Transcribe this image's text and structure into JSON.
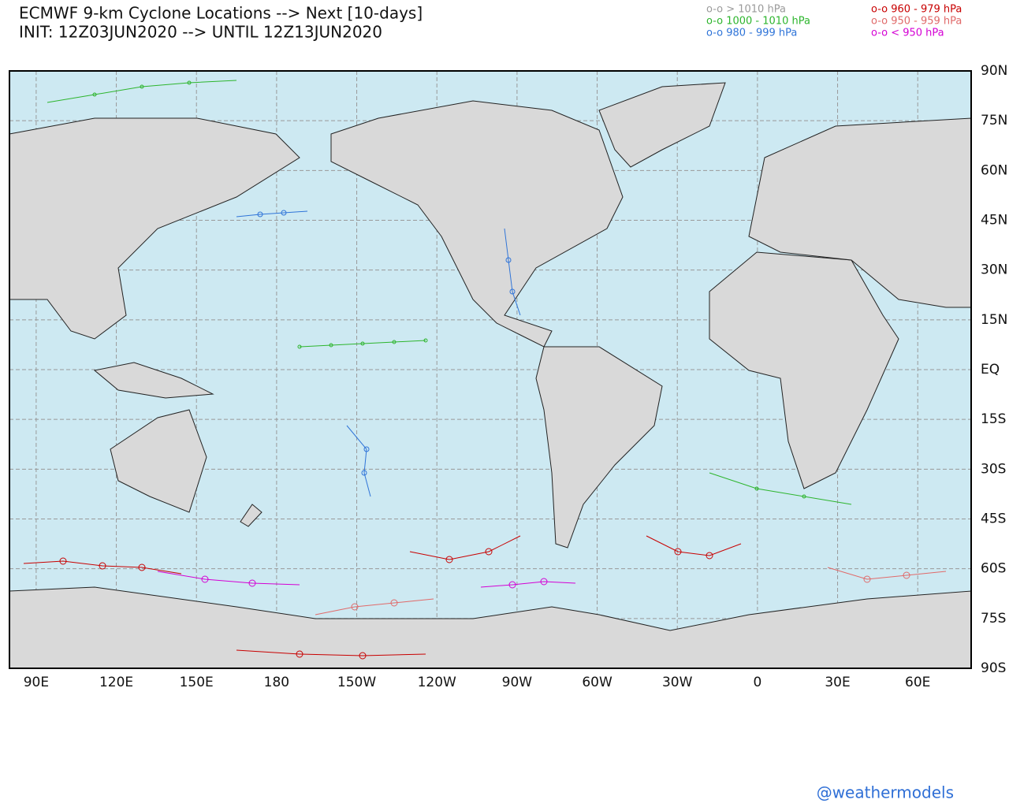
{
  "header": {
    "title": "ECMWF 9-km Cyclone Locations --> Next [10-days]",
    "subtitle": "INIT: 12Z03JUN2020 --> UNTIL 12Z13JUN2020"
  },
  "legend": [
    {
      "label": "o-o > 1010 hPa",
      "color": "#9a9a9a"
    },
    {
      "label": "o-o 1000 - 1010 hPa",
      "color": "#2db52d"
    },
    {
      "label": "o-o 980 - 999 hPa",
      "color": "#2f74d8"
    },
    {
      "label": "o-o 960 - 979 hPa",
      "color": "#c80000"
    },
    {
      "label": "o-o 950 - 959 hPa",
      "color": "#e06a6a"
    },
    {
      "label": "o-o < 950 hPa",
      "color": "#d400d4"
    }
  ],
  "map": {
    "xlim": [
      80,
      440
    ],
    "ylim": [
      -90,
      90
    ],
    "grid": true,
    "xticks": [
      {
        "value": 90,
        "label": "90E"
      },
      {
        "value": 120,
        "label": "120E"
      },
      {
        "value": 150,
        "label": "150E"
      },
      {
        "value": 180,
        "label": "180"
      },
      {
        "value": 210,
        "label": "150W"
      },
      {
        "value": 240,
        "label": "120W"
      },
      {
        "value": 270,
        "label": "90W"
      },
      {
        "value": 300,
        "label": "60W"
      },
      {
        "value": 330,
        "label": "30W"
      },
      {
        "value": 360,
        "label": "0"
      },
      {
        "value": 390,
        "label": "30E"
      },
      {
        "value": 420,
        "label": "60E"
      }
    ],
    "yticks": [
      {
        "value": 90,
        "label": "90N"
      },
      {
        "value": 75,
        "label": "75N"
      },
      {
        "value": 60,
        "label": "60N"
      },
      {
        "value": 45,
        "label": "45N"
      },
      {
        "value": 30,
        "label": "30N"
      },
      {
        "value": 15,
        "label": "15N"
      },
      {
        "value": 0,
        "label": "EQ"
      },
      {
        "value": -15,
        "label": "15S"
      },
      {
        "value": -30,
        "label": "30S"
      },
      {
        "value": -45,
        "label": "45S"
      },
      {
        "value": -60,
        "label": "60S"
      },
      {
        "value": -75,
        "label": "75S"
      },
      {
        "value": -90,
        "label": "90S"
      }
    ]
  },
  "footer": {
    "credit": "@weathermodels"
  }
}
